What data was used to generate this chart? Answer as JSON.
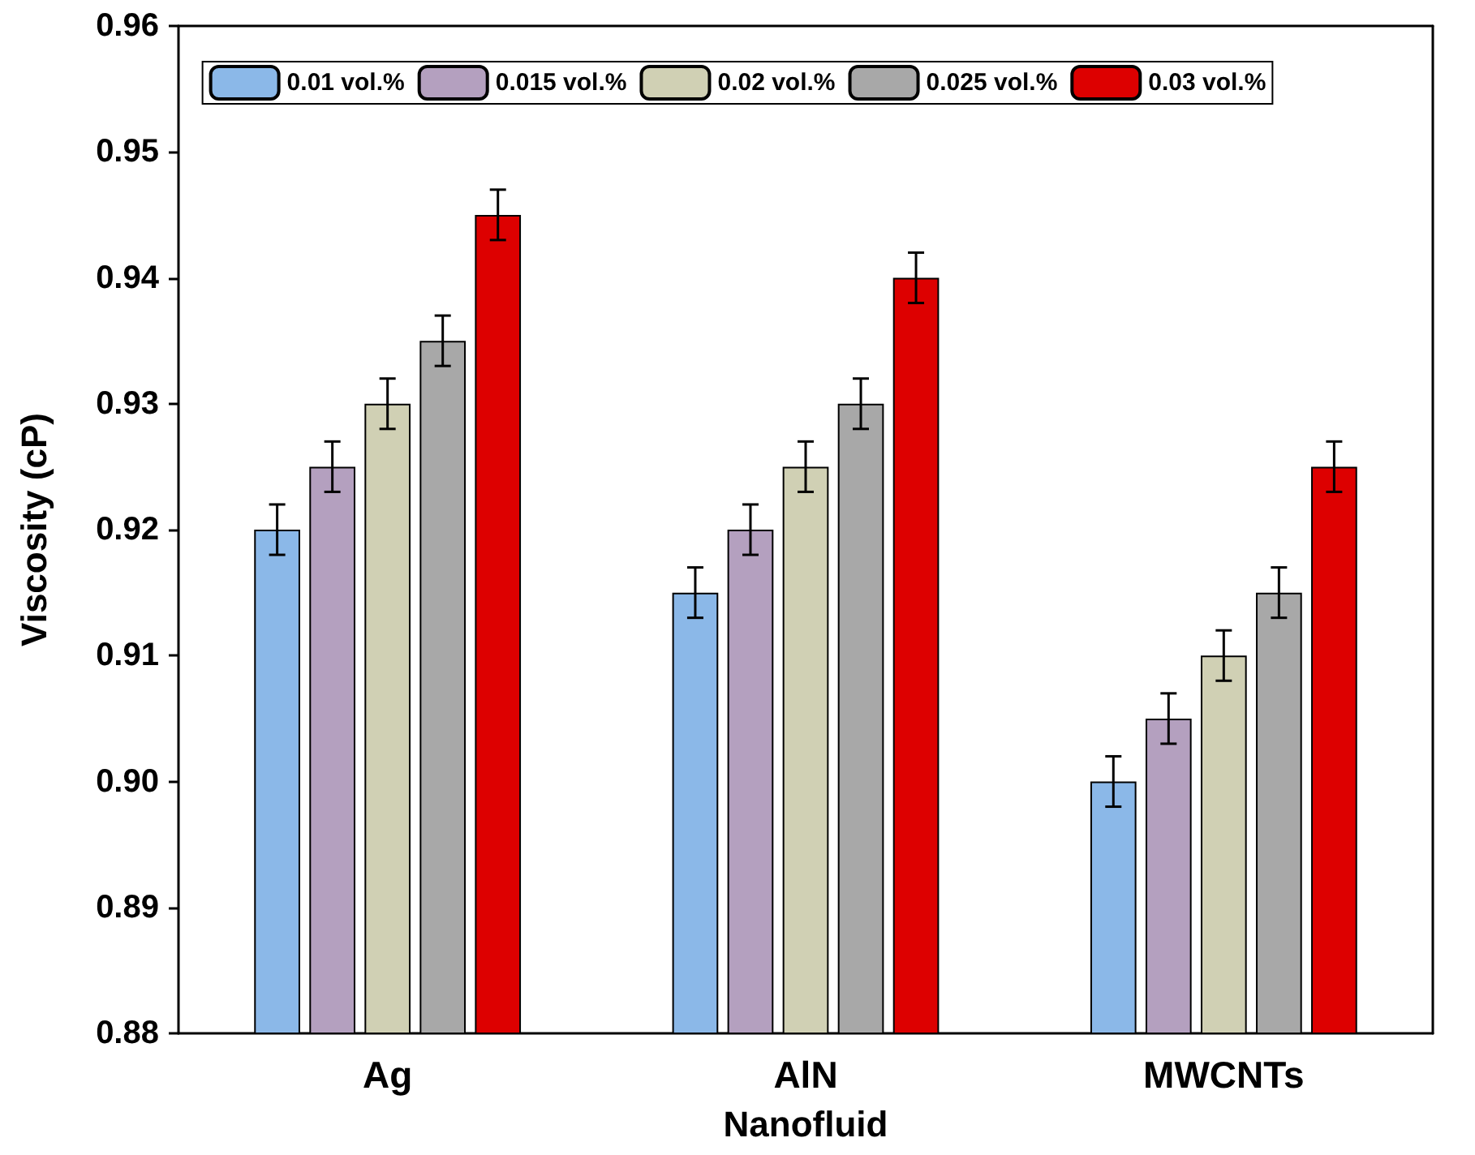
{
  "chart_data": {
    "type": "bar",
    "xlabel": "Nanofluid",
    "ylabel": "Viscosity (cP)",
    "categories": [
      "Ag",
      "AlN",
      "MWCNTs"
    ],
    "series": [
      {
        "name": "0.01 vol.%",
        "color": "#8bb8e8",
        "values": [
          0.92,
          0.915,
          0.9
        ],
        "errors": [
          0.002,
          0.002,
          0.002
        ]
      },
      {
        "name": "0.015 vol.%",
        "color": "#b4a0bf",
        "values": [
          0.925,
          0.92,
          0.905
        ],
        "errors": [
          0.002,
          0.002,
          0.002
        ]
      },
      {
        "name": "0.02 vol.%",
        "color": "#d0d0b4",
        "values": [
          0.93,
          0.925,
          0.91
        ],
        "errors": [
          0.002,
          0.002,
          0.002
        ]
      },
      {
        "name": "0.025 vol.%",
        "color": "#a8a8a8",
        "values": [
          0.935,
          0.93,
          0.915
        ],
        "errors": [
          0.002,
          0.002,
          0.002
        ]
      },
      {
        "name": "0.03 vol.%",
        "color": "#dd0000",
        "values": [
          0.945,
          0.94,
          0.925
        ],
        "errors": [
          0.002,
          0.002,
          0.002
        ]
      }
    ],
    "ylim": [
      0.88,
      0.96
    ],
    "yticks": [
      {
        "value": 0.88,
        "label": "0.88"
      },
      {
        "value": 0.89,
        "label": "0.89"
      },
      {
        "value": 0.9,
        "label": "0.90"
      },
      {
        "value": 0.91,
        "label": "0.91"
      },
      {
        "value": 0.92,
        "label": "0.92"
      },
      {
        "value": 0.93,
        "label": "0.93"
      },
      {
        "value": 0.94,
        "label": "0.94"
      },
      {
        "value": 0.95,
        "label": "0.95"
      },
      {
        "value": 0.96,
        "label": "0.96"
      }
    ],
    "grid": false,
    "legend": "top"
  }
}
